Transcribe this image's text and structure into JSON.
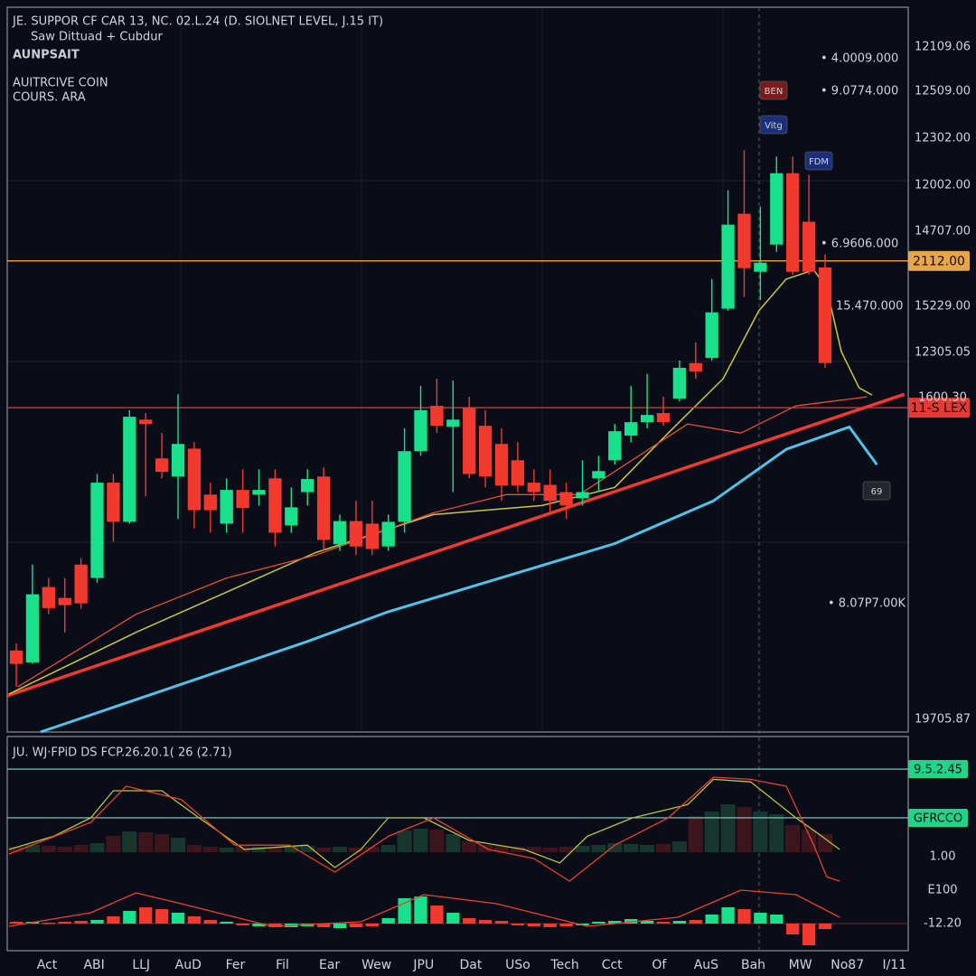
{
  "chart_data": {
    "type": "candlestick",
    "title": "JE. SUPPOR CF CAR 13, NC. 02.L.24 (D. SIOLNET LEVEL, J.15 IT)",
    "logo": "AUNPSAIT",
    "logo_caption": "Saw Dittuad + Cubdur",
    "subtitle": "AUITRCIVE COIN",
    "subtitle2": "COURS. ARA",
    "up_color": "#19e08a",
    "down_color": "#f2392e",
    "xlim": [
      -0.56,
      55.14
    ],
    "ylim": [
      0,
      100
    ],
    "open": [
      11.25,
      9.6,
      20,
      18.5,
      23.1,
      21.25,
      34.4,
      29,
      43.1,
      37.75,
      35.25,
      39.1,
      32.75,
      28.75,
      33.4,
      32.75,
      35,
      28.5,
      33.1,
      35.25,
      25.9,
      29.1,
      28.75,
      25.6,
      29,
      38.75,
      45,
      42.1,
      44.75,
      42.25,
      39.75,
      37.5,
      34.4,
      34.1,
      33.1,
      32.25,
      35,
      37.5,
      40.9,
      42.75,
      44,
      46,
      50.9,
      51.6,
      58.4,
      71.5,
      63.5,
      67.25,
      77.1,
      70.4,
      64.1
    ],
    "high": [
      12.25,
      23.1,
      21.25,
      21.25,
      24,
      35.6,
      35.6,
      44.4,
      44,
      41.25,
      46.6,
      40,
      34.4,
      35,
      36.25,
      36.25,
      36.25,
      33.75,
      36.25,
      36.5,
      30,
      31.9,
      31.9,
      30,
      41.9,
      47.75,
      48.75,
      48.5,
      46.25,
      44.4,
      41.9,
      40,
      36.25,
      36.25,
      34.4,
      37.5,
      38.1,
      42.5,
      47.75,
      49.4,
      46.25,
      51.25,
      53.75,
      62.5,
      74.75,
      80.25,
      72.5,
      79.4,
      79.4,
      76.9,
      65.9
    ],
    "low": [
      6.25,
      9.4,
      16.25,
      13.75,
      17,
      20.6,
      26.25,
      28.75,
      32.5,
      35,
      29.4,
      28.1,
      27.5,
      27.5,
      27.5,
      31.25,
      25.6,
      27.5,
      31.25,
      25,
      25,
      24.4,
      24.4,
      25,
      27.5,
      38.1,
      41.25,
      33.1,
      35,
      33.75,
      31.9,
      33.1,
      31.9,
      30,
      29.4,
      31.25,
      33.1,
      36.9,
      40,
      41.9,
      42.25,
      45.6,
      48.75,
      51.25,
      58.1,
      60,
      59.6,
      66.25,
      63.1,
      63.1,
      50.25
    ],
    "close": [
      9.4,
      19,
      17.1,
      17.5,
      17.75,
      34.4,
      29,
      43.5,
      42.5,
      35.9,
      39.75,
      30.6,
      30.6,
      33.4,
      30.9,
      33.4,
      27.5,
      31,
      34.9,
      26.5,
      29.1,
      25.6,
      25.25,
      29,
      38.75,
      44.4,
      42.25,
      43.1,
      35.6,
      35.25,
      34,
      34,
      33.1,
      31.9,
      31.25,
      33.1,
      36,
      41.5,
      42.75,
      43.75,
      42.75,
      50.25,
      49.75,
      57.9,
      70,
      64,
      64.75,
      77.1,
      63.5,
      63.5,
      50.9
    ],
    "lines": [
      {
        "color": "#4fc3e8",
        "width": 3,
        "x": [
          1.5,
          18,
          23,
          37,
          43.1,
          47.6,
          51.5,
          53.2
        ],
        "values": [
          0,
          12.5,
          16.6,
          26,
          31.9,
          39,
          42.1,
          36.9
        ]
      },
      {
        "color": "#f2392e",
        "width": 3.5,
        "x": [
          -0.56,
          54.9
        ],
        "values": [
          5,
          46.6
        ]
      },
      {
        "color": "#c9c83a",
        "width": 1.5,
        "x": [
          -0.45,
          7.4,
          18.5,
          25.8,
          32.5,
          37,
          40.3,
          43.7,
          45.9,
          47.6,
          49.3,
          50.1,
          51,
          52.1,
          52.9
        ],
        "values": [
          5.25,
          13.75,
          24.75,
          30,
          31.25,
          33.75,
          41.25,
          48.75,
          58.1,
          62.5,
          63.75,
          61.25,
          52.5,
          47.5,
          46.5
        ]
      },
      {
        "color": "#e8502e",
        "width": 1.3,
        "x": [
          0.1,
          7.4,
          13,
          18.5,
          25.8,
          30.3,
          34.8,
          41.5,
          44.8,
          48.2,
          52.6
        ],
        "values": [
          6.25,
          16.25,
          21.25,
          24.4,
          30.25,
          32.75,
          32.75,
          42.5,
          41.25,
          45,
          46.25
        ]
      }
    ],
    "levels": [
      {
        "value": 65,
        "label": "2112.00",
        "color": "#e8a64a"
      },
      {
        "value": 44.75,
        "label": "11-S LEX",
        "color": "#e53935"
      }
    ],
    "price_labels": [
      "12109.06",
      "12509.00",
      "12302.00",
      "12002.00",
      "14707.00",
      "15229.00",
      "12305.05",
      "1600.30",
      "19705.87"
    ],
    "inner_labels": [
      "• 4.0009.000",
      "• 9.0774.000",
      "• 6.9606.000",
      "15.470.000",
      "• 8.07P7.00K"
    ],
    "markers": [
      "BEN",
      "Vitg",
      "FDM",
      "69"
    ],
    "x_labels": [
      "Act",
      "ABI",
      "LLJ",
      "AuD",
      "Fer",
      "Fil",
      "Ear",
      "Wew",
      "JPU",
      "Dat",
      "USo",
      "Tech",
      "Cct",
      "Of",
      "AuS",
      "Bah",
      "MW",
      "No87",
      "I/11"
    ],
    "indicator": {
      "title": "JU. WJ·FPiD DS FCP.26.20.1( 26 (2.71)",
      "osc_ylim": [
        0,
        100
      ],
      "levels": [
        {
          "value": 92.1,
          "label": "9.5.2.45",
          "color": "#7fd9d0"
        },
        {
          "value": 53.6,
          "label": "GFRCCO",
          "color": "#7fd9d0"
        }
      ],
      "right_labels": [
        "1.00",
        "E100",
        "-12.20"
      ],
      "osc_lines": [
        {
          "color": "#b9c43a",
          "x": [
            -0.45,
            2.3,
            4.6,
            6,
            9,
            11.3,
            14.1,
            18,
            19.7,
            21.3,
            23,
            25.2,
            28,
            31.4,
            33.6,
            35.3,
            38.1,
            41.5,
            43.1,
            45.4,
            48.2,
            49.8,
            50.9
          ],
          "values": [
            28.6,
            39,
            53.6,
            75,
            75,
            53.6,
            28.6,
            32,
            14.3,
            28.6,
            53.6,
            53.6,
            35.7,
            28.6,
            17.9,
            39,
            53.6,
            64,
            84,
            82,
            53.6,
            39,
            28.6
          ]
        },
        {
          "color": "#e8402e",
          "x": [
            -0.45,
            4.6,
            6.8,
            10.2,
            13.5,
            16.9,
            19.7,
            23,
            25.8,
            29.2,
            32,
            34.2,
            37,
            40.3,
            43.1,
            45.4,
            47.6,
            49.3,
            50.1,
            50.9
          ],
          "values": [
            25,
            50,
            78.6,
            68,
            32,
            32,
            10.7,
            39,
            53.6,
            28.6,
            21.4,
            3.6,
            32,
            53.6,
            85.7,
            84,
            78.6,
            32,
            7,
            3.6
          ]
        }
      ],
      "volume_ylim": [
        0,
        100
      ],
      "volume": [
        6,
        8,
        7,
        6,
        8,
        10,
        18,
        23,
        22,
        20,
        16,
        8,
        6,
        5,
        7,
        6,
        5,
        6,
        7,
        5,
        6,
        5,
        6,
        8,
        24,
        26,
        25,
        20,
        12,
        8,
        7,
        6,
        6,
        5,
        6,
        7,
        8,
        10,
        9,
        8,
        9,
        12,
        40,
        45,
        53,
        50,
        45,
        42,
        30,
        25,
        20
      ],
      "hist_ylim": [
        -40,
        40
      ],
      "hist": [
        2,
        2,
        1,
        2,
        3,
        4,
        8,
        14,
        18,
        16,
        12,
        8,
        4,
        2,
        -2,
        -3,
        -4,
        -4,
        -3,
        -4,
        -5,
        -4,
        -3,
        6,
        28,
        30,
        20,
        12,
        6,
        4,
        3,
        -2,
        -3,
        -4,
        -3,
        -2,
        2,
        3,
        5,
        3,
        2,
        3,
        4,
        10,
        18,
        16,
        12,
        10,
        -12,
        -24,
        -6
      ],
      "signal": {
        "color": "#e8402e",
        "x": [
          -0.45,
          4.6,
          7.4,
          10.2,
          15.8,
          21.3,
          25.2,
          29.7,
          35.3,
          40.9,
          44.8,
          48.2,
          50.9
        ],
        "values": [
          -3,
          12,
          34,
          22,
          -3,
          2,
          32,
          22,
          -3,
          7,
          37,
          32,
          7
        ]
      }
    }
  }
}
